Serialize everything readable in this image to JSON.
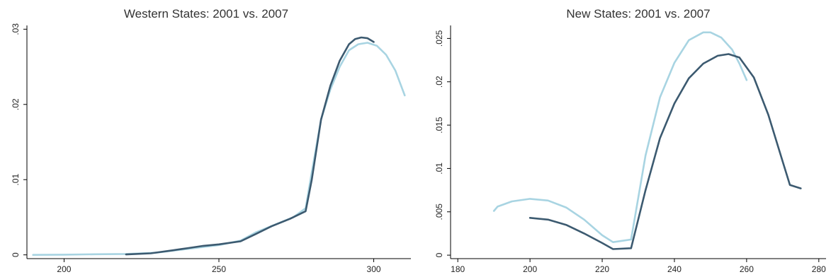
{
  "chart_data": [
    {
      "type": "line",
      "title": "Western States: 2001 vs. 2007",
      "xlabel": "",
      "ylabel": "",
      "xlim": [
        188,
        312
      ],
      "ylim": [
        -0.0005,
        0.0305
      ],
      "xticks": [
        200,
        250,
        300
      ],
      "xtick_labels": [
        "200",
        "250",
        "300"
      ],
      "yticks": [
        0,
        0.01,
        0.02,
        0.03
      ],
      "ytick_labels": [
        "0",
        ".01",
        ".02",
        ".03"
      ],
      "grid": false,
      "series": [
        {
          "color": "#a8d4e2",
          "x": [
            190,
            200,
            210,
            220,
            230,
            240,
            250,
            257,
            262,
            268,
            274,
            278,
            280,
            283,
            286,
            289,
            292,
            295,
            298,
            301,
            304,
            307,
            310
          ],
          "y": [
            0.0,
            3e-05,
            8e-05,
            0.00012,
            0.0003,
            0.0008,
            0.0013,
            0.0019,
            0.003,
            0.004,
            0.005,
            0.0062,
            0.011,
            0.018,
            0.022,
            0.025,
            0.0272,
            0.028,
            0.0282,
            0.0278,
            0.0266,
            0.0245,
            0.0212
          ]
        },
        {
          "color": "#3c5a70",
          "x": [
            220,
            228,
            235,
            240,
            245,
            250,
            257,
            262,
            267,
            273,
            278,
            280,
            283,
            286,
            289,
            292,
            294,
            296,
            298,
            300
          ],
          "y": [
            5e-05,
            0.0002,
            0.0006,
            0.0009,
            0.0012,
            0.0014,
            0.0018,
            0.0028,
            0.0038,
            0.0048,
            0.0058,
            0.01,
            0.018,
            0.0225,
            0.0258,
            0.028,
            0.0287,
            0.0289,
            0.0288,
            0.0283
          ]
        }
      ]
    },
    {
      "type": "line",
      "title": "New States: 2001 vs. 2007",
      "xlabel": "",
      "ylabel": "",
      "xlim": [
        178,
        282
      ],
      "ylim": [
        -0.0004,
        0.0265
      ],
      "xticks": [
        180,
        200,
        220,
        240,
        260,
        280
      ],
      "xtick_labels": [
        "180",
        "200",
        "220",
        "240",
        "260",
        "280"
      ],
      "yticks": [
        0,
        0.005,
        0.01,
        0.015,
        0.02,
        0.025
      ],
      "ytick_labels": [
        "0",
        ".005",
        ".01",
        ".015",
        ".02",
        ".025"
      ],
      "grid": false,
      "series": [
        {
          "color": "#a8d4e2",
          "x": [
            190,
            191,
            195,
            200,
            205,
            210,
            215,
            220,
            223,
            228,
            232,
            236,
            240,
            244,
            248,
            250,
            253,
            256,
            258,
            260
          ],
          "y": [
            0.0051,
            0.0056,
            0.0062,
            0.0065,
            0.0063,
            0.0055,
            0.0041,
            0.0023,
            0.0015,
            0.0018,
            0.0115,
            0.0182,
            0.0222,
            0.0248,
            0.0257,
            0.0257,
            0.0251,
            0.0237,
            0.0221,
            0.0202
          ]
        },
        {
          "color": "#3c5a70",
          "x": [
            200,
            205,
            210,
            215,
            220,
            223,
            228,
            232,
            236,
            240,
            244,
            248,
            252,
            255,
            258,
            262,
            266,
            270,
            272,
            275
          ],
          "y": [
            0.0043,
            0.0041,
            0.0035,
            0.0025,
            0.0014,
            0.0007,
            0.0008,
            0.0075,
            0.0135,
            0.0175,
            0.0204,
            0.0221,
            0.023,
            0.0232,
            0.0228,
            0.0205,
            0.0162,
            0.0108,
            0.0081,
            0.0077
          ]
        }
      ]
    }
  ]
}
